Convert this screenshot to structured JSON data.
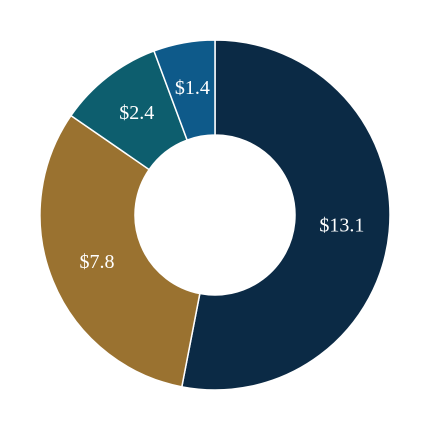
{
  "chart_data": {
    "type": "donut",
    "values": [
      13.1,
      7.8,
      2.4,
      1.4
    ],
    "value_labels": [
      "$13.1",
      "$7.8",
      "$2.4",
      "$1.4"
    ],
    "colors": [
      "#0b2a45",
      "#9a7230",
      "#0d5e6e",
      "#0e5a8a"
    ]
  }
}
